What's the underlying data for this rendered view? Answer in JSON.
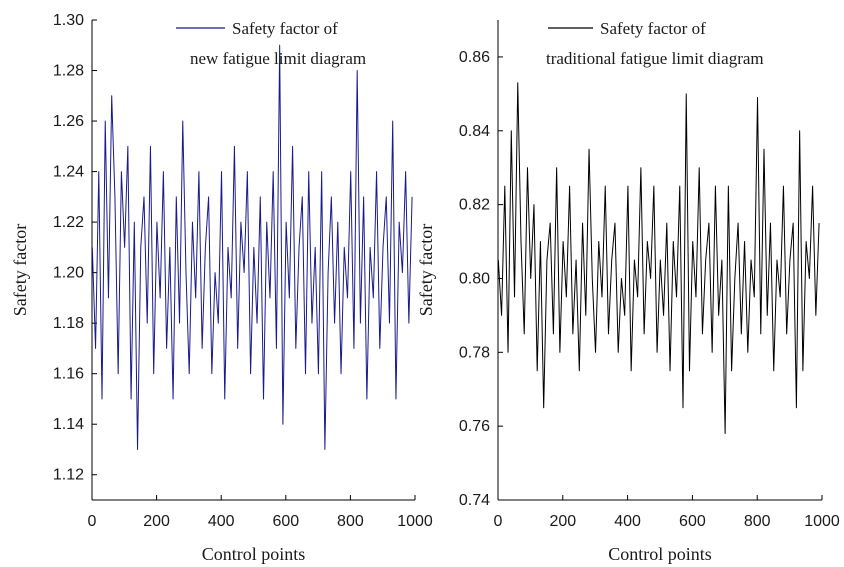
{
  "chart_data": [
    {
      "type": "line",
      "xlabel": "Control points",
      "ylabel": "Safety factor",
      "xlim": [
        0,
        1000
      ],
      "ylim": [
        1.11,
        1.3
      ],
      "x_ticks": [
        "0",
        "200",
        "400",
        "600",
        "800",
        "1000"
      ],
      "y_ticks": [
        "1.12",
        "1.14",
        "1.16",
        "1.18",
        "1.20",
        "1.22",
        "1.24",
        "1.26",
        "1.28",
        "1.30"
      ],
      "legend": {
        "line1": "Safety factor of",
        "line2": "new fatigue limit diagram",
        "position": "top-right"
      },
      "series": [
        {
          "color": "#1a1a8c",
          "x_start": 1,
          "x_step": 10,
          "values": [
            1.21,
            1.17,
            1.24,
            1.15,
            1.26,
            1.19,
            1.27,
            1.23,
            1.16,
            1.24,
            1.21,
            1.25,
            1.15,
            1.22,
            1.13,
            1.21,
            1.23,
            1.18,
            1.25,
            1.16,
            1.22,
            1.19,
            1.24,
            1.17,
            1.21,
            1.15,
            1.23,
            1.18,
            1.26,
            1.2,
            1.16,
            1.22,
            1.19,
            1.24,
            1.17,
            1.21,
            1.23,
            1.16,
            1.2,
            1.18,
            1.24,
            1.15,
            1.21,
            1.19,
            1.25,
            1.17,
            1.22,
            1.2,
            1.24,
            1.16,
            1.21,
            1.18,
            1.23,
            1.15,
            1.22,
            1.19,
            1.24,
            1.17,
            1.29,
            1.14,
            1.22,
            1.19,
            1.25,
            1.17,
            1.21,
            1.23,
            1.16,
            1.24,
            1.18,
            1.21,
            1.16,
            1.24,
            1.13,
            1.2,
            1.23,
            1.18,
            1.22,
            1.16,
            1.21,
            1.19,
            1.24,
            1.17,
            1.28,
            1.18,
            1.23,
            1.15,
            1.21,
            1.19,
            1.24,
            1.17,
            1.21,
            1.23,
            1.18,
            1.26,
            1.15,
            1.22,
            1.2,
            1.24,
            1.18,
            1.23
          ]
        }
      ]
    },
    {
      "type": "line",
      "xlabel": "Control points",
      "ylabel": "Safety factor",
      "xlim": [
        0,
        1000
      ],
      "ylim": [
        0.74,
        0.87
      ],
      "x_ticks": [
        "0",
        "200",
        "400",
        "600",
        "800",
        "1000"
      ],
      "y_ticks": [
        "0.74",
        "0.76",
        "0.78",
        "0.80",
        "0.82",
        "0.84",
        "0.86"
      ],
      "legend": {
        "line1": "Safety factor of",
        "line2": "traditional fatigue limit diagram",
        "position": "top-right"
      },
      "series": [
        {
          "color": "#000000",
          "x_start": 1,
          "x_step": 10,
          "values": [
            0.805,
            0.79,
            0.825,
            0.78,
            0.84,
            0.795,
            0.853,
            0.81,
            0.785,
            0.83,
            0.8,
            0.82,
            0.775,
            0.81,
            0.765,
            0.805,
            0.815,
            0.785,
            0.83,
            0.78,
            0.81,
            0.795,
            0.825,
            0.785,
            0.805,
            0.775,
            0.815,
            0.79,
            0.835,
            0.8,
            0.78,
            0.81,
            0.795,
            0.825,
            0.785,
            0.805,
            0.815,
            0.78,
            0.8,
            0.79,
            0.825,
            0.775,
            0.805,
            0.795,
            0.83,
            0.785,
            0.81,
            0.8,
            0.825,
            0.78,
            0.805,
            0.79,
            0.815,
            0.775,
            0.81,
            0.795,
            0.825,
            0.765,
            0.85,
            0.775,
            0.81,
            0.795,
            0.83,
            0.785,
            0.805,
            0.815,
            0.78,
            0.825,
            0.79,
            0.805,
            0.758,
            0.825,
            0.775,
            0.8,
            0.815,
            0.785,
            0.81,
            0.78,
            0.805,
            0.795,
            0.849,
            0.785,
            0.835,
            0.79,
            0.815,
            0.775,
            0.805,
            0.795,
            0.825,
            0.785,
            0.805,
            0.815,
            0.765,
            0.84,
            0.775,
            0.81,
            0.8,
            0.825,
            0.79,
            0.815
          ]
        }
      ]
    }
  ]
}
